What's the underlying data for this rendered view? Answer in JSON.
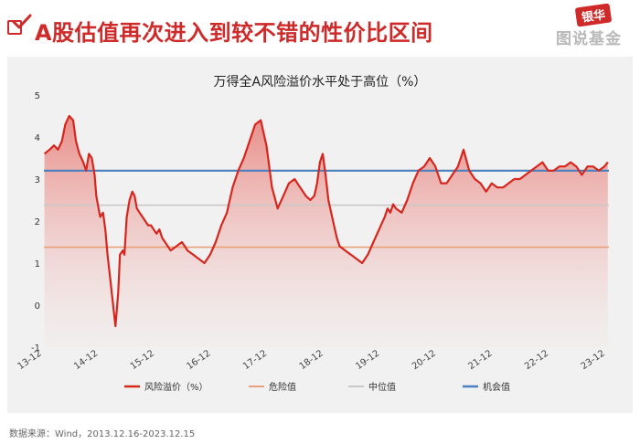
{
  "header": {
    "title": "A股估值再次进入到较不错的性价比区间",
    "brand_top": "银华",
    "brand_bottom": "图说基金"
  },
  "source": "数据来源：Wind，2013.12.16-2023.12.15",
  "colors": {
    "accent": "#cf2a2a",
    "series": "#d7261e",
    "danger": "#e8a07b",
    "median": "#c9c9c9",
    "opportunity": "#4a80c0",
    "card": "#f1f1f1"
  },
  "chart_data": {
    "type": "line",
    "title": "万得全A风险溢价水平处于高位（%）",
    "xlabel": "",
    "ylabel": "",
    "ylim": [
      -1,
      5
    ],
    "yticks": [
      "5",
      "4",
      "3",
      "2",
      "1",
      "0",
      "-1"
    ],
    "xticks": [
      "13-12",
      "14-12",
      "15-12",
      "16-12",
      "17-12",
      "18-12",
      "19-12",
      "20-12",
      "21-12",
      "22-12",
      "23-12"
    ],
    "grid": false,
    "legend_position": "bottom",
    "reference_lines": [
      {
        "name": "危险值",
        "value": 1.38
      },
      {
        "name": "中位值",
        "value": 2.38
      },
      {
        "name": "机会值",
        "value": 3.2
      }
    ],
    "series": [
      {
        "name": "风险溢价（%）",
        "x": [
          2013.96,
          2014.05,
          2014.13,
          2014.2,
          2014.27,
          2014.33,
          2014.4,
          2014.47,
          2014.52,
          2014.58,
          2014.65,
          2014.7,
          2014.75,
          2014.8,
          2014.85,
          2014.88,
          2014.92,
          2014.95,
          2015.0,
          2015.04,
          2015.08,
          2015.13,
          2015.17,
          2015.22,
          2015.27,
          2015.3,
          2015.35,
          2015.38,
          2015.42,
          2015.47,
          2015.52,
          2015.56,
          2015.6,
          2015.65,
          2015.7,
          2015.75,
          2015.8,
          2015.85,
          2015.9,
          2015.95,
          2016.0,
          2016.05,
          2016.1,
          2016.2,
          2016.3,
          2016.4,
          2016.5,
          2016.6,
          2016.7,
          2016.8,
          2016.9,
          2017.0,
          2017.1,
          2017.2,
          2017.3,
          2017.4,
          2017.5,
          2017.6,
          2017.7,
          2017.8,
          2017.9,
          2018.0,
          2018.1,
          2018.2,
          2018.3,
          2018.4,
          2018.5,
          2018.55,
          2018.6,
          2018.68,
          2018.75,
          2018.8,
          2018.85,
          2018.9,
          2018.95,
          2019.0,
          2019.05,
          2019.1,
          2019.15,
          2019.2,
          2019.3,
          2019.4,
          2019.5,
          2019.6,
          2019.7,
          2019.8,
          2019.9,
          2020.0,
          2020.05,
          2020.1,
          2020.15,
          2020.2,
          2020.3,
          2020.4,
          2020.5,
          2020.6,
          2020.7,
          2020.8,
          2020.9,
          2021.0,
          2021.1,
          2021.2,
          2021.3,
          2021.4,
          2021.5,
          2021.6,
          2021.7,
          2021.8,
          2021.9,
          2022.0,
          2022.1,
          2022.2,
          2022.3,
          2022.4,
          2022.5,
          2022.6,
          2022.7,
          2022.8,
          2022.9,
          2023.0,
          2023.1,
          2023.2,
          2023.3,
          2023.4,
          2023.5,
          2023.6,
          2023.7,
          2023.8,
          2023.9,
          2023.96
        ],
        "values": [
          3.6,
          3.7,
          3.8,
          3.7,
          3.9,
          4.3,
          4.5,
          4.4,
          3.9,
          3.6,
          3.4,
          3.2,
          3.6,
          3.5,
          3.1,
          2.6,
          2.3,
          2.1,
          2.2,
          1.8,
          1.2,
          0.6,
          0.1,
          -0.5,
          0.3,
          1.2,
          1.3,
          1.2,
          2.1,
          2.5,
          2.7,
          2.6,
          2.3,
          2.2,
          2.1,
          2.0,
          1.9,
          1.9,
          1.8,
          1.7,
          1.8,
          1.6,
          1.5,
          1.3,
          1.4,
          1.5,
          1.3,
          1.2,
          1.1,
          1.0,
          1.2,
          1.5,
          1.9,
          2.2,
          2.8,
          3.2,
          3.5,
          3.9,
          4.3,
          4.4,
          3.8,
          2.8,
          2.3,
          2.6,
          2.9,
          3.0,
          2.8,
          2.7,
          2.6,
          2.5,
          2.6,
          2.9,
          3.4,
          3.6,
          3.1,
          2.5,
          2.2,
          1.9,
          1.6,
          1.4,
          1.3,
          1.2,
          1.1,
          1.0,
          1.2,
          1.5,
          1.8,
          2.1,
          2.3,
          2.2,
          2.4,
          2.3,
          2.2,
          2.5,
          2.9,
          3.2,
          3.3,
          3.5,
          3.3,
          2.9,
          2.9,
          3.1,
          3.3,
          3.7,
          3.2,
          3.0,
          2.9,
          2.7,
          2.9,
          2.8,
          2.8,
          2.9,
          3.0,
          3.0,
          3.1,
          3.2,
          3.3,
          3.4,
          3.2,
          3.2,
          3.3,
          3.3,
          3.4,
          3.3,
          3.1,
          3.3,
          3.3,
          3.2,
          3.3,
          3.4
        ]
      }
    ]
  }
}
